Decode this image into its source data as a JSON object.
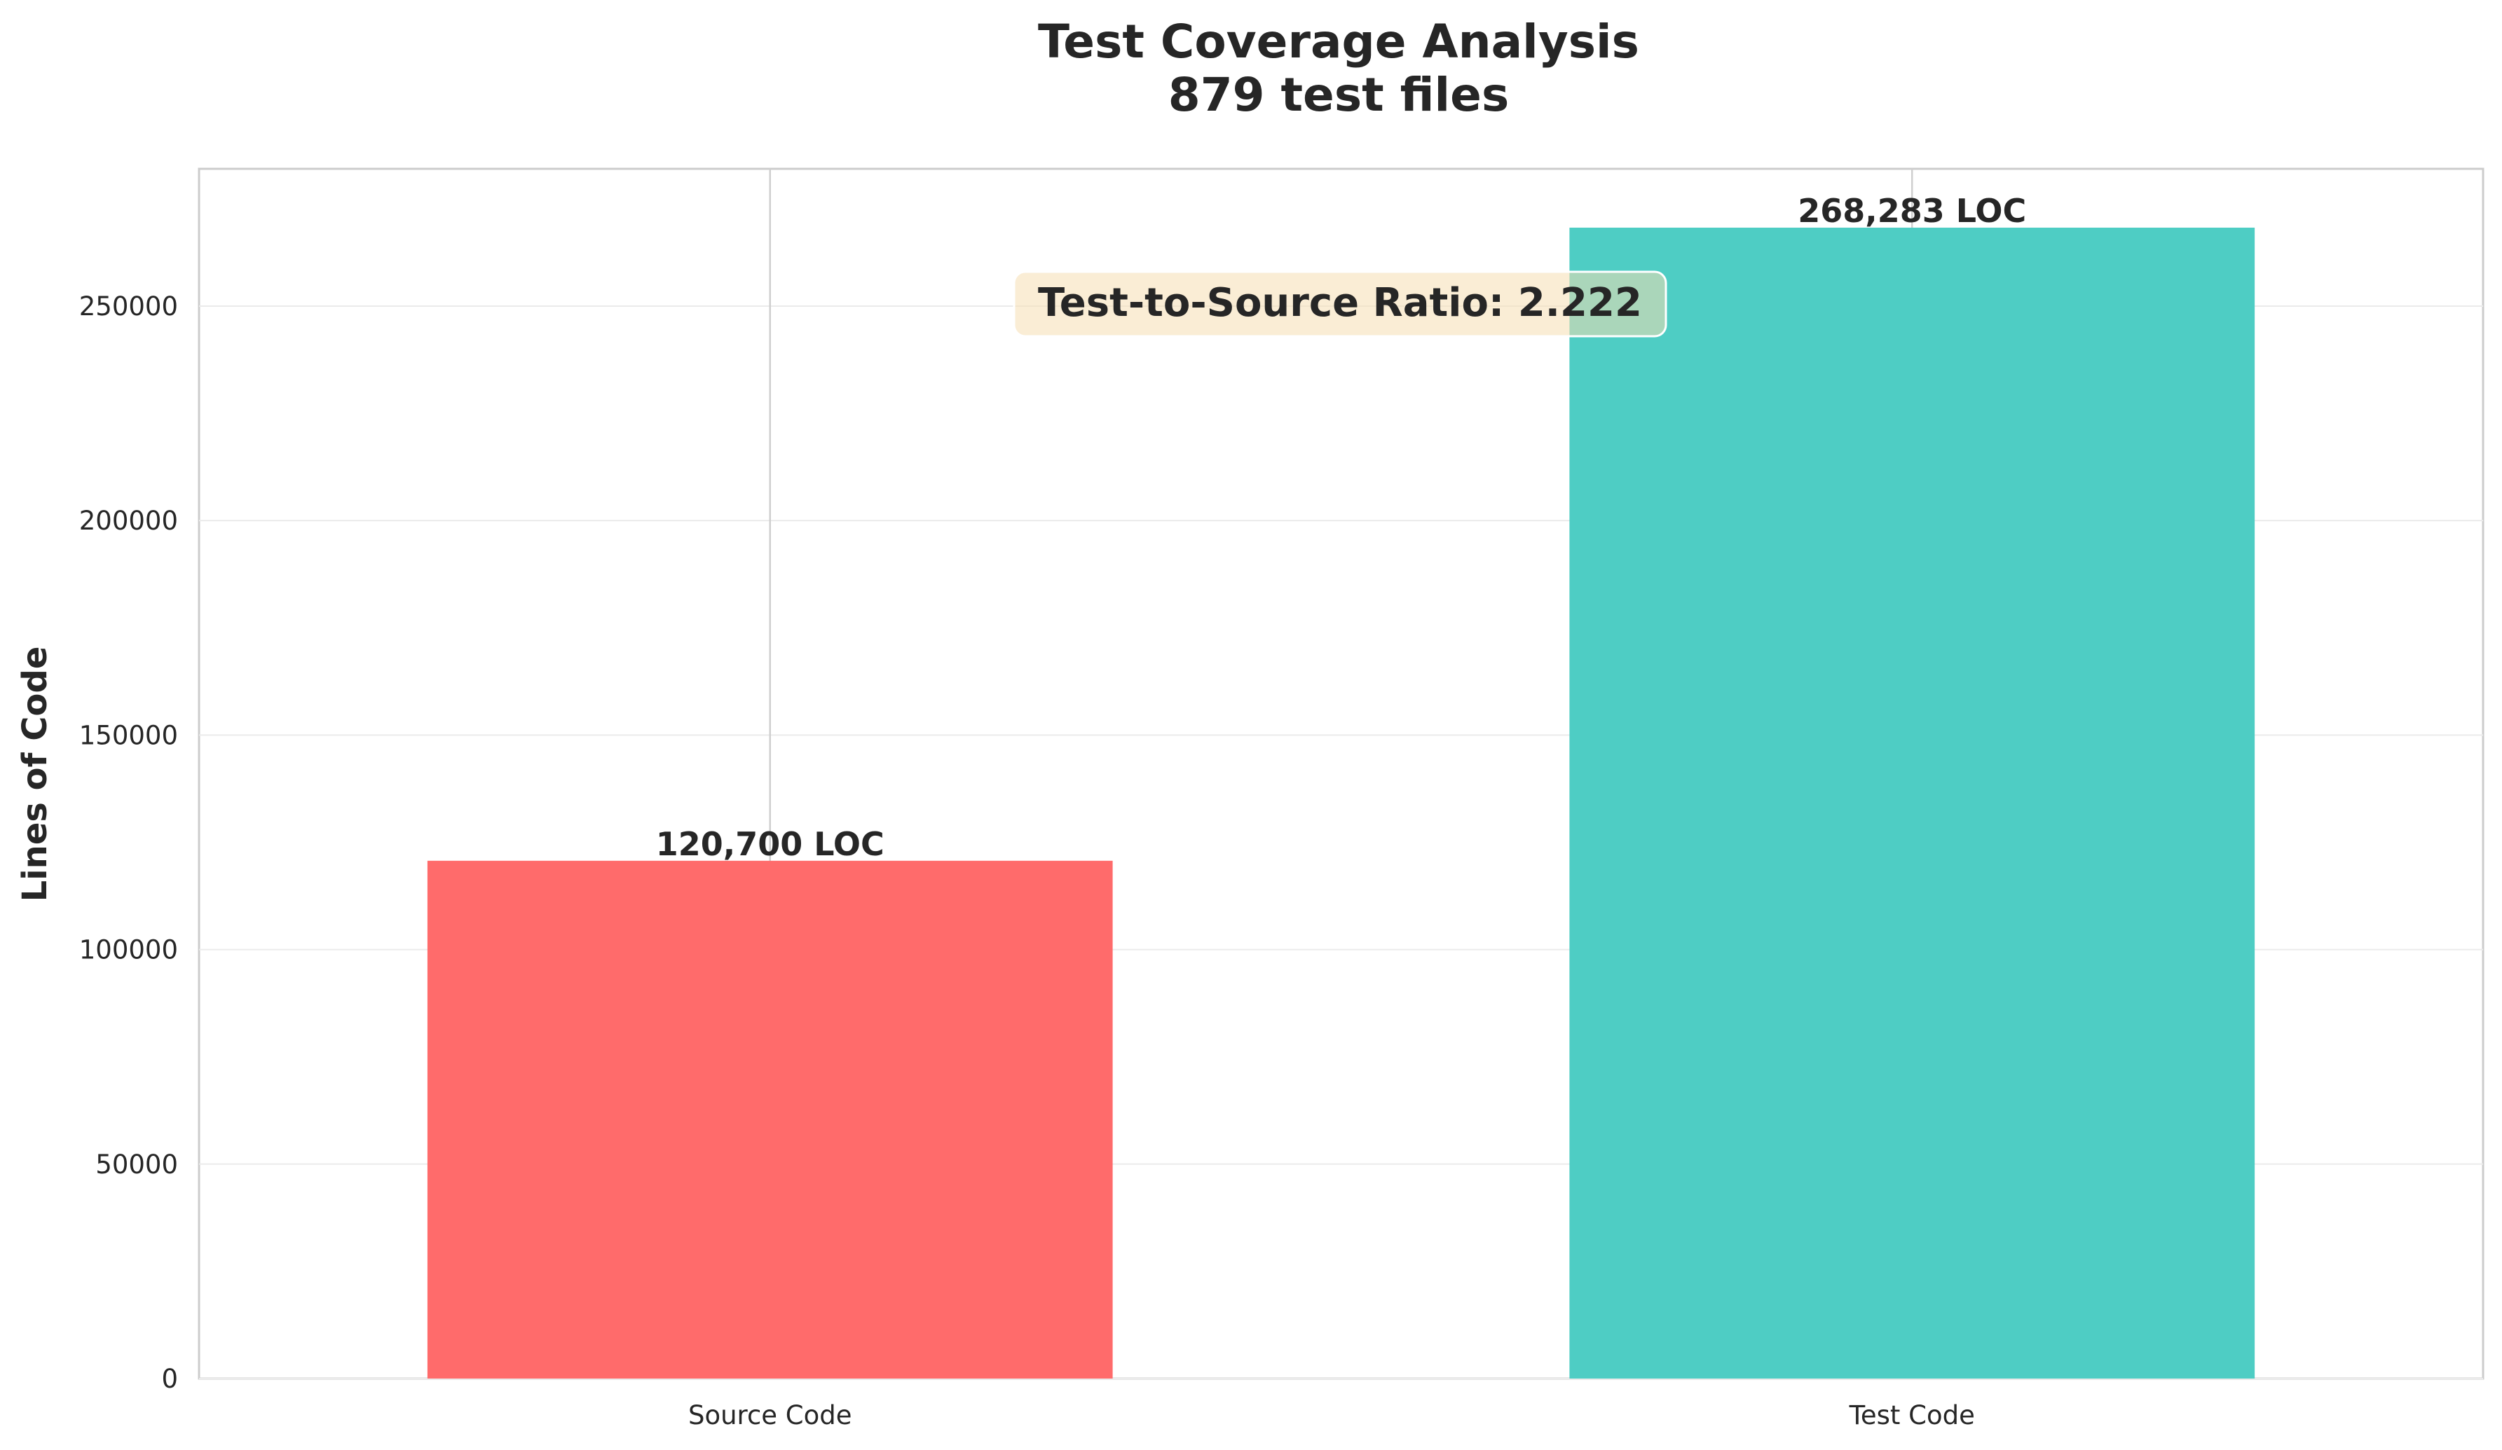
{
  "chart_data": {
    "type": "bar",
    "title": "Test Coverage Analysis",
    "subtitle": "879 test files",
    "xlabel": "",
    "ylabel": "Lines of Code",
    "categories": [
      "Source Code",
      "Test Code"
    ],
    "values": [
      120700,
      268283
    ],
    "data_labels": [
      "120,700 LOC",
      "268,283 LOC"
    ],
    "colors": [
      "#ff6b6b",
      "#4ecdc4"
    ],
    "ylim": [
      0,
      282000
    ],
    "yticks": [
      0,
      50000,
      100000,
      150000,
      200000,
      250000
    ],
    "ytick_labels": [
      "0",
      "50000",
      "100000",
      "150000",
      "200000",
      "250000"
    ],
    "grid": true,
    "annotation": {
      "text": "Test-to-Source Ratio: 2.222",
      "background": "#f5deb3"
    }
  }
}
